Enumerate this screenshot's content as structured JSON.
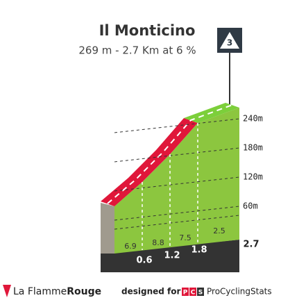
{
  "header": {
    "title": "Il Monticino",
    "subtitle": "269 m - 2.7 Km at 6 %"
  },
  "category": "3",
  "altitudes": [
    "240m",
    "180m",
    "120m",
    "60m"
  ],
  "gradients": [
    "6.9",
    "8.8",
    "7.5",
    "2.5"
  ],
  "distances": [
    "0.6",
    "1.2",
    "1.8",
    "2.7"
  ],
  "footer": {
    "brand": "La Flamme",
    "brand_bold": "Rouge",
    "designed_for": "designed for",
    "logo": [
      "P",
      "C",
      "S"
    ],
    "site": "ProCyclingStats"
  }
}
